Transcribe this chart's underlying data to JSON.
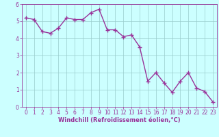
{
  "x": [
    0,
    1,
    2,
    3,
    4,
    5,
    6,
    7,
    8,
    9,
    10,
    11,
    12,
    13,
    14,
    15,
    16,
    17,
    18,
    19,
    20,
    21,
    22,
    23
  ],
  "y": [
    5.2,
    5.1,
    4.4,
    4.3,
    4.6,
    5.2,
    5.1,
    5.1,
    5.5,
    5.7,
    4.5,
    4.5,
    4.1,
    4.2,
    3.5,
    1.5,
    2.0,
    1.4,
    0.85,
    1.5,
    2.0,
    1.1,
    0.9,
    0.3
  ],
  "line_color": "#993399",
  "marker_color": "#993399",
  "bg_color": "#ccffff",
  "plot_bg_color": "#ccffff",
  "grid_color": "#99cccc",
  "xlabel": "Windchill (Refroidissement éolien,°C)",
  "xlabel_color": "#993399",
  "tick_color": "#993399",
  "spine_color": "#993399",
  "xlim": [
    -0.5,
    23.5
  ],
  "ylim": [
    0,
    6
  ],
  "yticks": [
    0,
    1,
    2,
    3,
    4,
    5,
    6
  ],
  "xticks": [
    0,
    1,
    2,
    3,
    4,
    5,
    6,
    7,
    8,
    9,
    10,
    11,
    12,
    13,
    14,
    15,
    16,
    17,
    18,
    19,
    20,
    21,
    22,
    23
  ],
  "marker_size": 2.5,
  "line_width": 1.0,
  "tick_fontsize": 5.5,
  "xlabel_fontsize": 6.0
}
